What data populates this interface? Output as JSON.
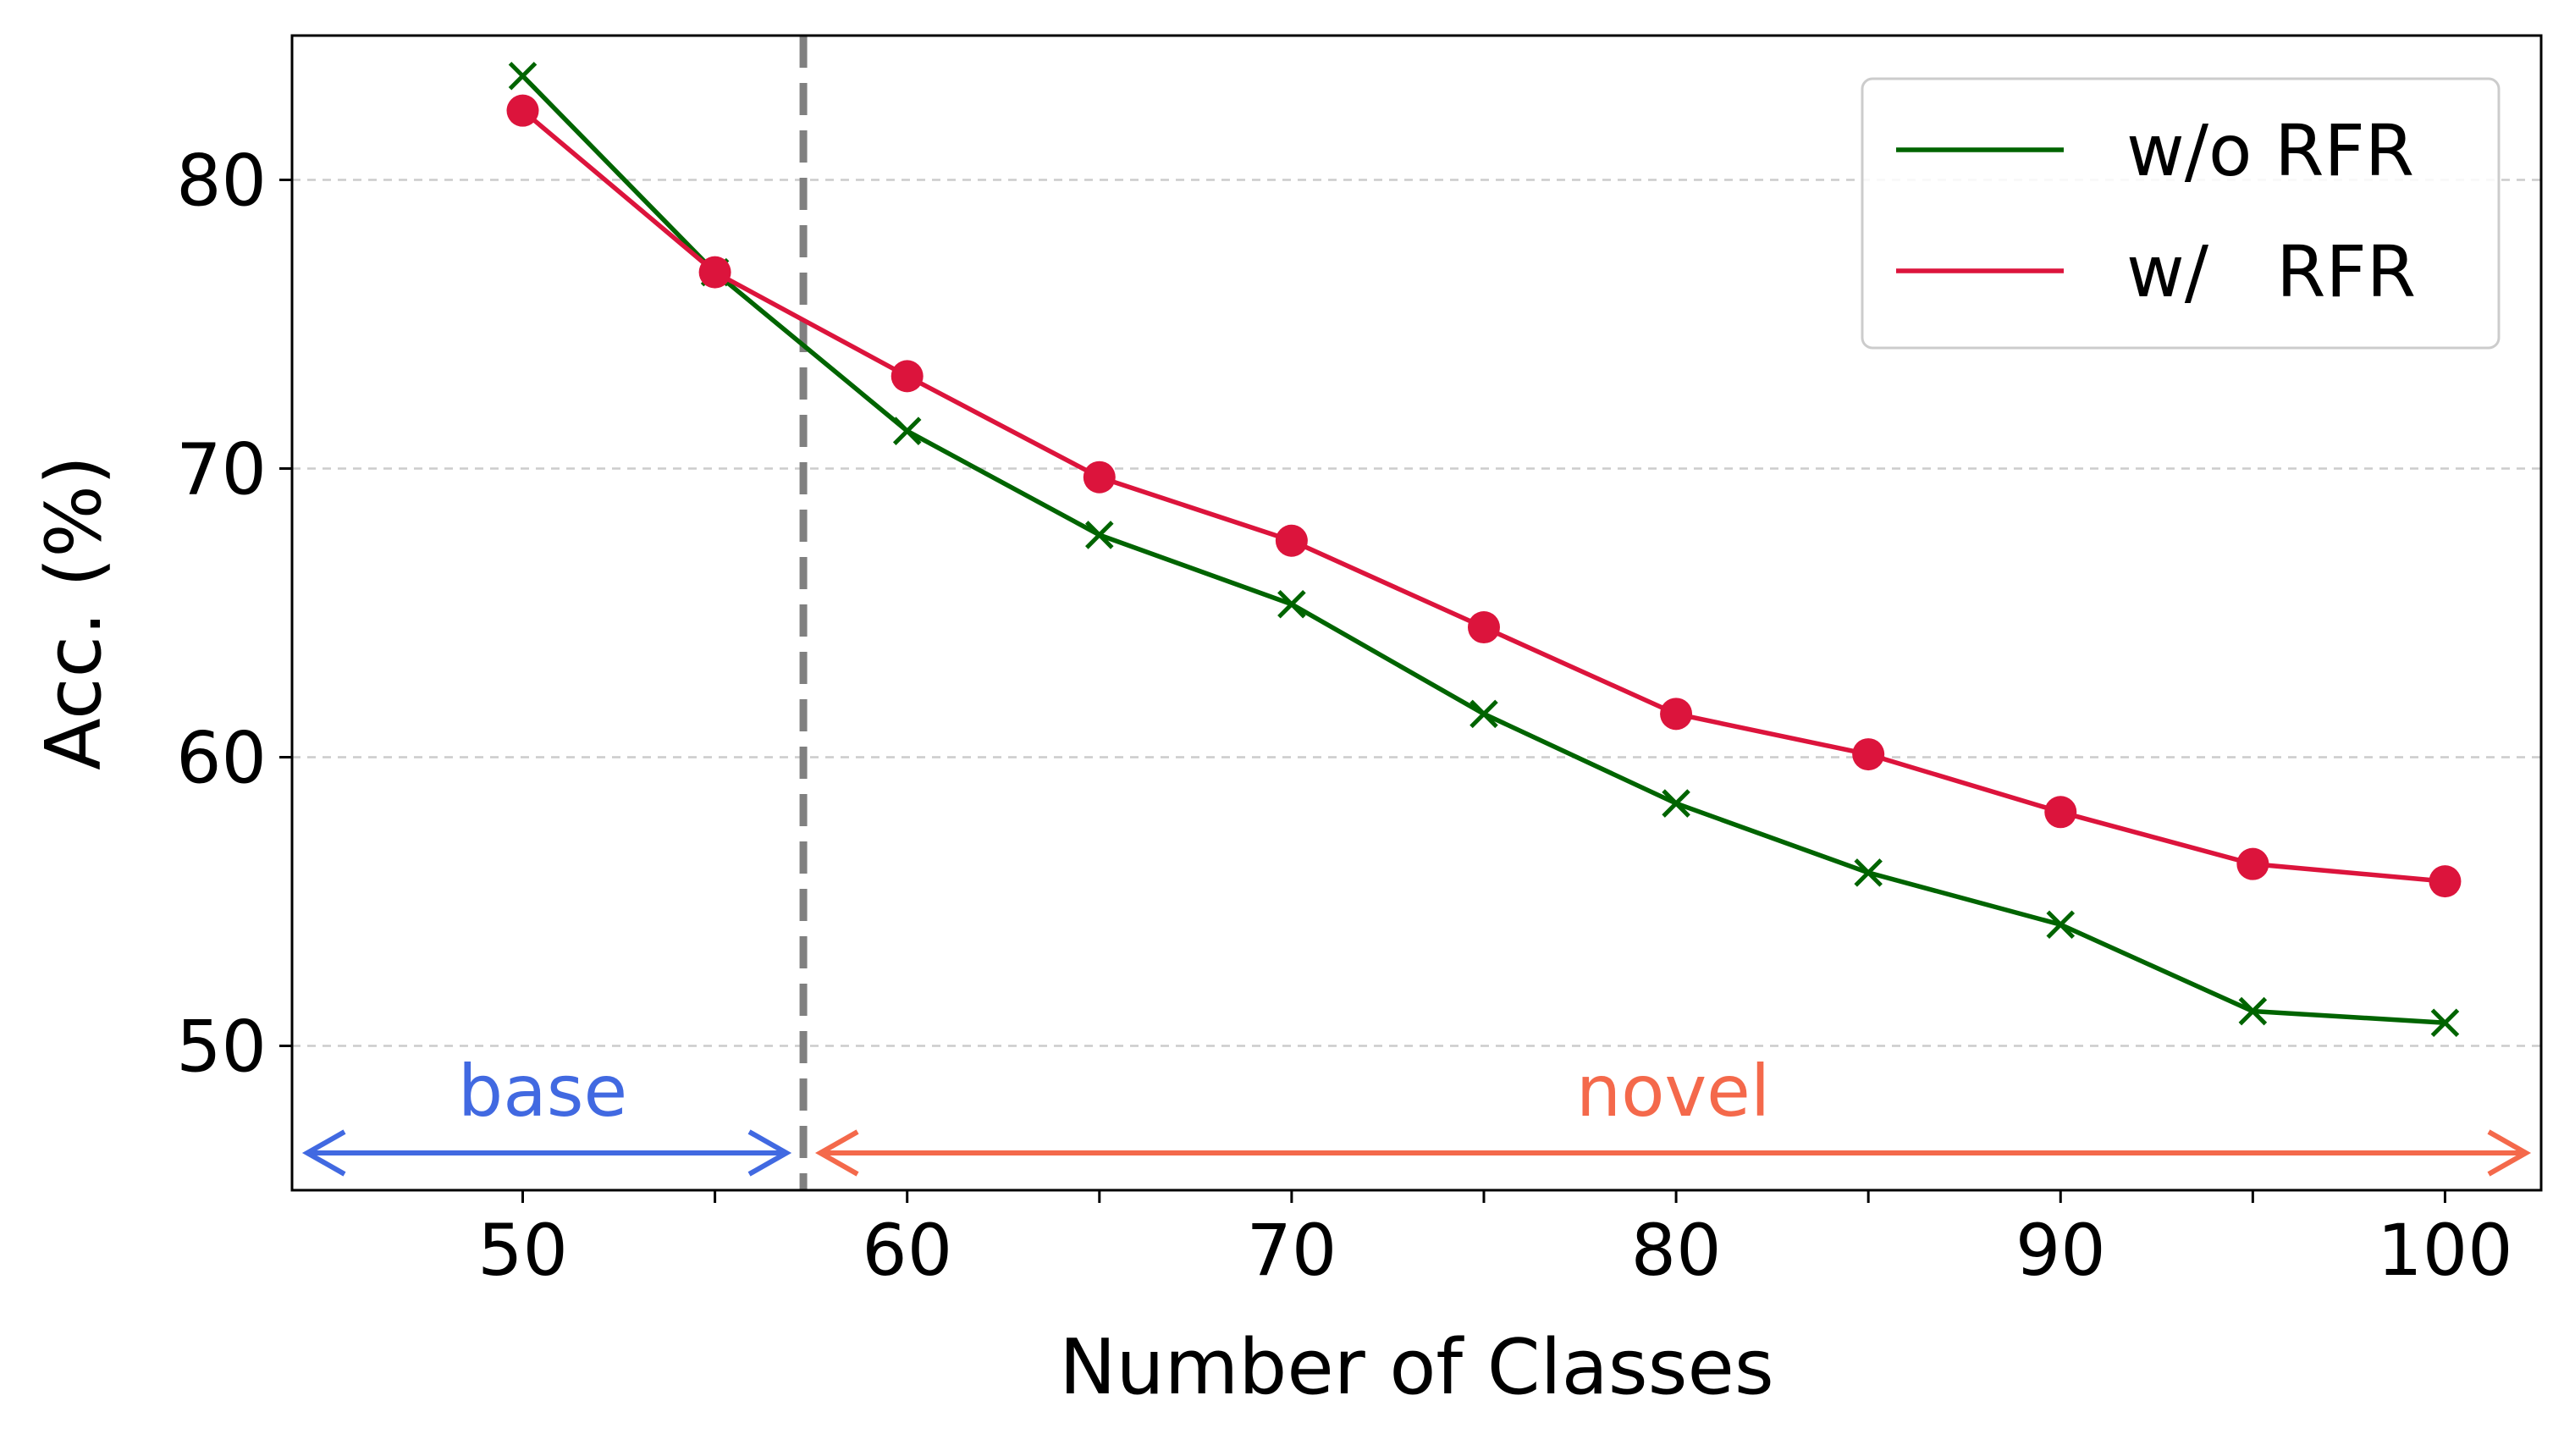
{
  "chart_data": {
    "type": "line",
    "title": "",
    "xlabel": "Number of Classes",
    "ylabel": "Acc. (%)",
    "xlim": [
      44,
      102.5
    ],
    "ylim": [
      45,
      85
    ],
    "xticks": [
      50,
      60,
      70,
      80,
      90,
      100
    ],
    "xticks_minor": [
      55,
      65,
      75,
      85,
      95
    ],
    "yticks": [
      50,
      60,
      70,
      80
    ],
    "grid": "horizontal-dashed",
    "legend_position": "top-right",
    "session_divider_x": 57.3,
    "series": [
      {
        "name": "w/o RFR",
        "marker": "x",
        "color": "#006400",
        "x": [
          50,
          55,
          60,
          65,
          70,
          75,
          80,
          85,
          90,
          95,
          100
        ],
        "values": [
          83.6,
          76.8,
          71.3,
          67.7,
          65.3,
          61.5,
          58.4,
          56.0,
          54.2,
          51.2,
          50.8
        ]
      },
      {
        "name": "w/   RFR",
        "marker": "circle",
        "color": "#DC143C",
        "x": [
          50,
          55,
          60,
          65,
          70,
          75,
          80,
          85,
          90,
          95,
          100
        ],
        "values": [
          82.4,
          76.8,
          73.2,
          69.7,
          67.5,
          64.5,
          61.5,
          60.1,
          58.1,
          56.3,
          55.7
        ]
      }
    ],
    "annotations": [
      {
        "text": "base",
        "color": "#4169E1",
        "x_from": 44,
        "x_to": 57.3
      },
      {
        "text": "novel",
        "color": "#F4694B",
        "x_from": 57.3,
        "x_to": 102.5
      }
    ]
  }
}
